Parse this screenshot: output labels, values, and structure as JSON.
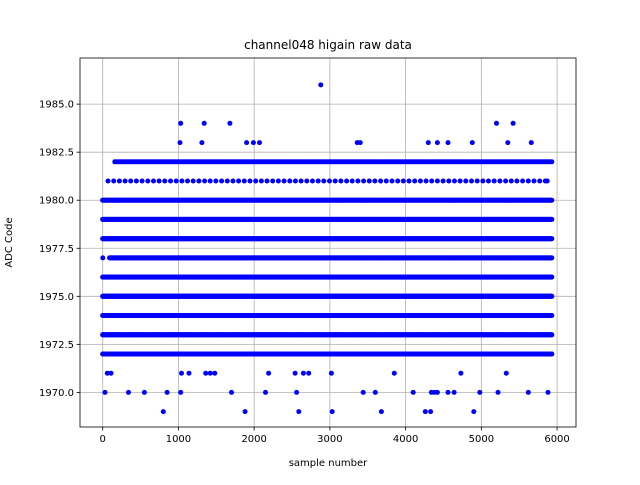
{
  "chart_data": {
    "type": "scatter",
    "title": "channel048 higain raw data",
    "xlabel": "sample number",
    "ylabel": "ADC Code",
    "xlim": [
      -300,
      6250
    ],
    "ylim": [
      1968.2,
      1987.4
    ],
    "x_ticks": [
      0,
      1000,
      2000,
      3000,
      4000,
      5000,
      6000
    ],
    "x_tick_labels": [
      "0",
      "1000",
      "2000",
      "3000",
      "4000",
      "5000",
      "6000"
    ],
    "y_ticks": [
      1970.0,
      1972.5,
      1975.0,
      1977.5,
      1980.0,
      1982.5,
      1985.0
    ],
    "y_tick_labels": [
      "1970.0",
      "1972.5",
      "1975.0",
      "1977.5",
      "1980.0",
      "1982.5",
      "1985.0"
    ],
    "grid": true,
    "marker_color": "#0000ff",
    "marker": "circle",
    "series": [
      {
        "points": [
          [
            2880,
            1986
          ],
          [
            1030,
            1984
          ],
          [
            1340,
            1984
          ],
          [
            1680,
            1984
          ],
          [
            5200,
            1984
          ],
          [
            5420,
            1984
          ],
          [
            1020,
            1983
          ],
          [
            1310,
            1983
          ],
          [
            1900,
            1983
          ],
          [
            1990,
            1983
          ],
          [
            2070,
            1983
          ],
          [
            3360,
            1983
          ],
          [
            3400,
            1983
          ],
          [
            4300,
            1983
          ],
          [
            4420,
            1983
          ],
          [
            4560,
            1983
          ],
          [
            4880,
            1983
          ],
          [
            5350,
            1983
          ],
          [
            5660,
            1983
          ],
          [
            1,
            1980
          ],
          [
            1,
            1979
          ],
          [
            1,
            1978
          ],
          [
            1,
            1977
          ],
          [
            1,
            1976
          ],
          [
            1,
            1975
          ],
          [
            1,
            1974
          ],
          [
            1,
            1973
          ],
          [
            1,
            1972
          ],
          [
            60,
            1971
          ],
          [
            110,
            1971
          ],
          [
            1040,
            1971
          ],
          [
            1140,
            1971
          ],
          [
            1360,
            1971
          ],
          [
            1420,
            1971
          ],
          [
            1480,
            1971
          ],
          [
            2190,
            1971
          ],
          [
            2540,
            1971
          ],
          [
            2650,
            1971
          ],
          [
            2720,
            1971
          ],
          [
            3020,
            1971
          ],
          [
            3850,
            1971
          ],
          [
            4730,
            1971
          ],
          [
            5330,
            1971
          ],
          [
            30,
            1970
          ],
          [
            340,
            1970
          ],
          [
            550,
            1970
          ],
          [
            850,
            1970
          ],
          [
            1030,
            1970
          ],
          [
            1700,
            1970
          ],
          [
            2150,
            1970
          ],
          [
            2560,
            1970
          ],
          [
            3440,
            1970
          ],
          [
            3600,
            1970
          ],
          [
            4100,
            1970
          ],
          [
            4340,
            1970
          ],
          [
            4380,
            1970
          ],
          [
            4420,
            1970
          ],
          [
            4560,
            1970
          ],
          [
            4640,
            1970
          ],
          [
            4980,
            1970
          ],
          [
            5220,
            1970
          ],
          [
            5620,
            1970
          ],
          [
            5880,
            1970
          ],
          [
            800,
            1969
          ],
          [
            1880,
            1969
          ],
          [
            2590,
            1969
          ],
          [
            3030,
            1969
          ],
          [
            3680,
            1969
          ],
          [
            4260,
            1969
          ],
          [
            4330,
            1969
          ],
          [
            4900,
            1969
          ]
        ],
        "dense_bands": [
          {
            "y": 1982,
            "from": 160,
            "to": 5930,
            "step": 26
          },
          {
            "y": 1981,
            "from": 70,
            "to": 5870,
            "step": 75
          },
          {
            "y": 1980,
            "from": 0,
            "to": 5930,
            "step": 9
          },
          {
            "y": 1979,
            "from": 0,
            "to": 5930,
            "step": 7
          },
          {
            "y": 1978,
            "from": 0,
            "to": 5930,
            "step": 6
          },
          {
            "y": 1977,
            "from": 90,
            "to": 5930,
            "step": 7
          },
          {
            "y": 1976,
            "from": 0,
            "to": 5930,
            "step": 6
          },
          {
            "y": 1975,
            "from": 0,
            "to": 5930,
            "step": 6
          },
          {
            "y": 1974,
            "from": 0,
            "to": 5930,
            "step": 6
          },
          {
            "y": 1973,
            "from": 0,
            "to": 5930,
            "step": 7
          },
          {
            "y": 1972,
            "from": 0,
            "to": 5930,
            "step": 11
          }
        ]
      }
    ]
  }
}
